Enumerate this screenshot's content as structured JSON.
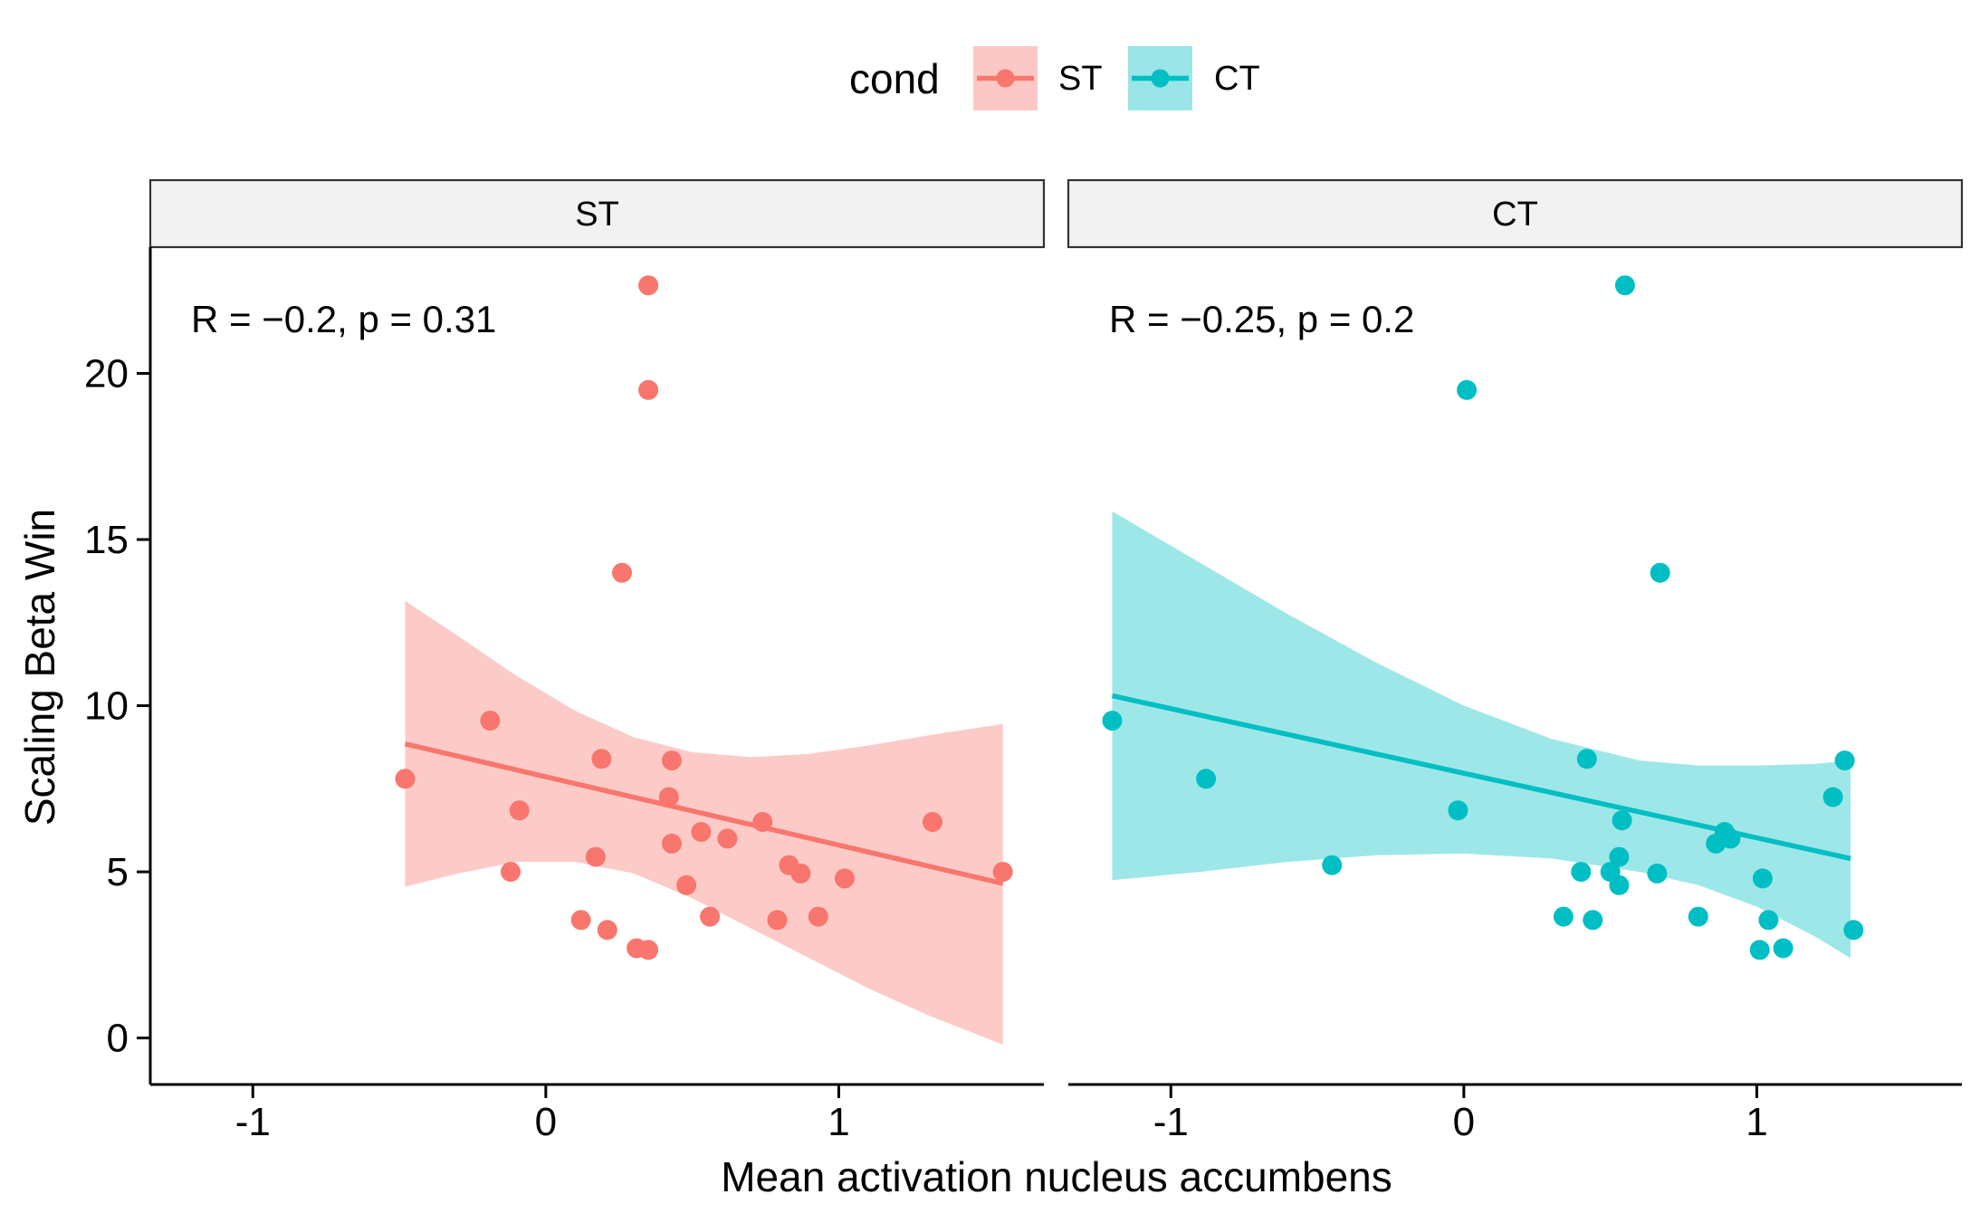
{
  "legend": {
    "title": "cond",
    "items": [
      {
        "label": "ST",
        "color": "#F8766D",
        "fill": "#F8766D"
      },
      {
        "label": "CT",
        "color": "#00BFC4",
        "fill": "#00BFC4"
      }
    ]
  },
  "chart_data": {
    "type": "scatter",
    "xlabel": "Mean activation nucleus accumbens",
    "ylabel": "Scaling Beta Win",
    "xlim": [
      -1.35,
      1.7
    ],
    "ylim": [
      -1.4,
      23.8
    ],
    "x_ticks": [
      -1,
      0,
      1
    ],
    "x_tick_labels": [
      "-1",
      "0",
      "1"
    ],
    "y_ticks": [
      0,
      5,
      10,
      15,
      20
    ],
    "y_tick_labels": [
      "0",
      "5",
      "10",
      "15",
      "20"
    ],
    "grid": false,
    "legend_position": "top",
    "panels": [
      {
        "name": "ST",
        "color": "#F8766D",
        "annotation": "R = −0.2, p = 0.31",
        "fit": {
          "x": [
            -0.48,
            1.56
          ],
          "y": [
            8.85,
            4.65
          ]
        },
        "ci_band": {
          "x": [
            -0.48,
            -0.3,
            -0.1,
            0.1,
            0.3,
            0.5,
            0.7,
            0.9,
            1.1,
            1.3,
            1.56
          ],
          "lower": [
            4.55,
            4.95,
            5.3,
            5.3,
            4.95,
            4.2,
            3.3,
            2.4,
            1.5,
            0.7,
            -0.2
          ],
          "upper": [
            13.15,
            12.1,
            10.9,
            9.85,
            9.05,
            8.6,
            8.45,
            8.55,
            8.8,
            9.1,
            9.45
          ]
        },
        "points": [
          {
            "x": -0.48,
            "y": 7.8
          },
          {
            "x": -0.19,
            "y": 9.55
          },
          {
            "x": -0.12,
            "y": 5.0
          },
          {
            "x": -0.09,
            "y": 6.85
          },
          {
            "x": 0.12,
            "y": 3.55
          },
          {
            "x": 0.17,
            "y": 5.45
          },
          {
            "x": 0.19,
            "y": 8.4
          },
          {
            "x": 0.21,
            "y": 3.25
          },
          {
            "x": 0.26,
            "y": 14.0
          },
          {
            "x": 0.31,
            "y": 2.7
          },
          {
            "x": 0.35,
            "y": 2.65
          },
          {
            "x": 0.35,
            "y": 19.5
          },
          {
            "x": 0.35,
            "y": 22.65
          },
          {
            "x": 0.42,
            "y": 7.25
          },
          {
            "x": 0.43,
            "y": 8.35
          },
          {
            "x": 0.43,
            "y": 5.85
          },
          {
            "x": 0.48,
            "y": 4.6
          },
          {
            "x": 0.53,
            "y": 6.2
          },
          {
            "x": 0.56,
            "y": 3.65
          },
          {
            "x": 0.62,
            "y": 6.0
          },
          {
            "x": 0.74,
            "y": 6.5
          },
          {
            "x": 0.79,
            "y": 3.55
          },
          {
            "x": 0.83,
            "y": 5.2
          },
          {
            "x": 0.87,
            "y": 4.95
          },
          {
            "x": 0.93,
            "y": 3.65
          },
          {
            "x": 1.02,
            "y": 4.8
          },
          {
            "x": 1.32,
            "y": 6.5
          },
          {
            "x": 1.56,
            "y": 5.0
          }
        ]
      },
      {
        "name": "CT",
        "color": "#00BFC4",
        "annotation": "R = −0.25, p = 0.2",
        "fit": {
          "x": [
            -1.2,
            1.32
          ],
          "y": [
            10.3,
            5.4
          ]
        },
        "ci_band": {
          "x": [
            -1.2,
            -0.9,
            -0.6,
            -0.3,
            0.0,
            0.3,
            0.6,
            0.8,
            1.0,
            1.2,
            1.32
          ],
          "lower": [
            4.75,
            5.0,
            5.3,
            5.5,
            5.55,
            5.4,
            5.0,
            4.6,
            3.95,
            3.05,
            2.4
          ],
          "upper": [
            15.85,
            14.3,
            12.75,
            11.3,
            10.0,
            9.0,
            8.35,
            8.2,
            8.2,
            8.25,
            8.35
          ]
        },
        "points": [
          {
            "x": -1.2,
            "y": 9.55
          },
          {
            "x": -0.88,
            "y": 7.8
          },
          {
            "x": -0.45,
            "y": 5.2
          },
          {
            "x": -0.02,
            "y": 6.85
          },
          {
            "x": 0.01,
            "y": 19.5
          },
          {
            "x": 0.34,
            "y": 3.65
          },
          {
            "x": 0.4,
            "y": 5.0
          },
          {
            "x": 0.42,
            "y": 8.4
          },
          {
            "x": 0.44,
            "y": 3.55
          },
          {
            "x": 0.5,
            "y": 5.0
          },
          {
            "x": 0.53,
            "y": 4.6
          },
          {
            "x": 0.53,
            "y": 5.45
          },
          {
            "x": 0.54,
            "y": 6.55
          },
          {
            "x": 0.55,
            "y": 22.65
          },
          {
            "x": 0.66,
            "y": 4.95
          },
          {
            "x": 0.67,
            "y": 14.0
          },
          {
            "x": 0.8,
            "y": 3.65
          },
          {
            "x": 0.86,
            "y": 5.85
          },
          {
            "x": 0.89,
            "y": 6.2
          },
          {
            "x": 0.91,
            "y": 6.0
          },
          {
            "x": 1.01,
            "y": 2.65
          },
          {
            "x": 1.02,
            "y": 4.8
          },
          {
            "x": 1.04,
            "y": 3.55
          },
          {
            "x": 1.09,
            "y": 2.7
          },
          {
            "x": 1.26,
            "y": 7.25
          },
          {
            "x": 1.3,
            "y": 8.35
          },
          {
            "x": 1.33,
            "y": 3.25
          }
        ]
      }
    ]
  }
}
